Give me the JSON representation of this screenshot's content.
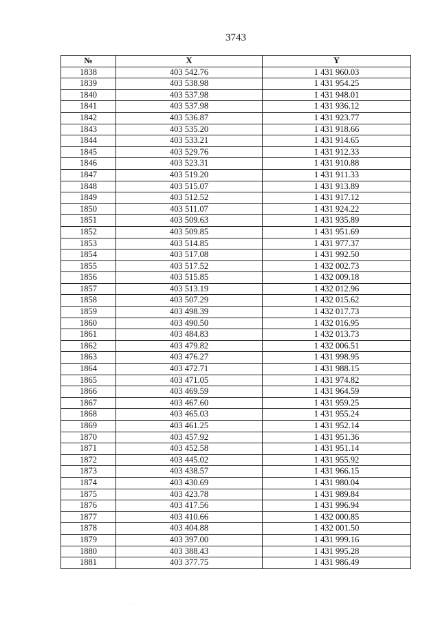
{
  "page_number": "3743",
  "table": {
    "headers": [
      "№",
      "X",
      "Y"
    ],
    "rows": [
      [
        "1838",
        "403 542.76",
        "1 431 960.03"
      ],
      [
        "1839",
        "403 538.98",
        "1 431 954.25"
      ],
      [
        "1840",
        "403 537.98",
        "1 431 948.01"
      ],
      [
        "1841",
        "403 537.98",
        "1 431 936.12"
      ],
      [
        "1842",
        "403 536.87",
        "1 431 923.77"
      ],
      [
        "1843",
        "403 535.20",
        "1 431 918.66"
      ],
      [
        "1844",
        "403 533.21",
        "1 431 914.65"
      ],
      [
        "1845",
        "403 529.76",
        "1 431 912.33"
      ],
      [
        "1846",
        "403 523.31",
        "1 431 910.88"
      ],
      [
        "1847",
        "403 519.20",
        "1 431 911.33"
      ],
      [
        "1848",
        "403 515.07",
        "1 431 913.89"
      ],
      [
        "1849",
        "403 512.52",
        "1 431 917.12"
      ],
      [
        "1850",
        "403 511.07",
        "1 431 924.22"
      ],
      [
        "1851",
        "403 509.63",
        "1 431 935.89"
      ],
      [
        "1852",
        "403 509.85",
        "1 431 951.69"
      ],
      [
        "1853",
        "403 514.85",
        "1 431 977.37"
      ],
      [
        "1854",
        "403 517.08",
        "1 431 992.50"
      ],
      [
        "1855",
        "403 517.52",
        "1 432 002.73"
      ],
      [
        "1856",
        "403 515.85",
        "1 432 009.18"
      ],
      [
        "1857",
        "403 513.19",
        "1 432 012.96"
      ],
      [
        "1858",
        "403 507.29",
        "1 432 015.62"
      ],
      [
        "1859",
        "403 498.39",
        "1 432 017.73"
      ],
      [
        "1860",
        "403 490.50",
        "1 432 016.95"
      ],
      [
        "1861",
        "403 484.83",
        "1 432 013.73"
      ],
      [
        "1862",
        "403 479.82",
        "1 432 006.51"
      ],
      [
        "1863",
        "403 476.27",
        "1 431 998.95"
      ],
      [
        "1864",
        "403 472.71",
        "1 431 988.15"
      ],
      [
        "1865",
        "403 471.05",
        "1 431 974.82"
      ],
      [
        "1866",
        "403 469.59",
        "1 431 964.59"
      ],
      [
        "1867",
        "403 467.60",
        "1 431 959.25"
      ],
      [
        "1868",
        "403 465.03",
        "1 431 955.24"
      ],
      [
        "1869",
        "403 461.25",
        "1 431 952.14"
      ],
      [
        "1870",
        "403 457.92",
        "1 431 951.36"
      ],
      [
        "1871",
        "403 452.58",
        "1 431 951.14"
      ],
      [
        "1872",
        "403 445.02",
        "1 431 955.92"
      ],
      [
        "1873",
        "403 438.57",
        "1 431 966.15"
      ],
      [
        "1874",
        "403 430.69",
        "1 431 980.04"
      ],
      [
        "1875",
        "403 423.78",
        "1 431 989.84"
      ],
      [
        "1876",
        "403 417.56",
        "1 431 996.94"
      ],
      [
        "1877",
        "403 410.66",
        "1 432 000.85"
      ],
      [
        "1878",
        "403 404.88",
        "1 432 001.50"
      ],
      [
        "1879",
        "403 397.00",
        "1 431 999.16"
      ],
      [
        "1880",
        "403 388.43",
        "1 431 995.28"
      ],
      [
        "1881",
        "403 377.75",
        "1 431 986.49"
      ]
    ]
  }
}
